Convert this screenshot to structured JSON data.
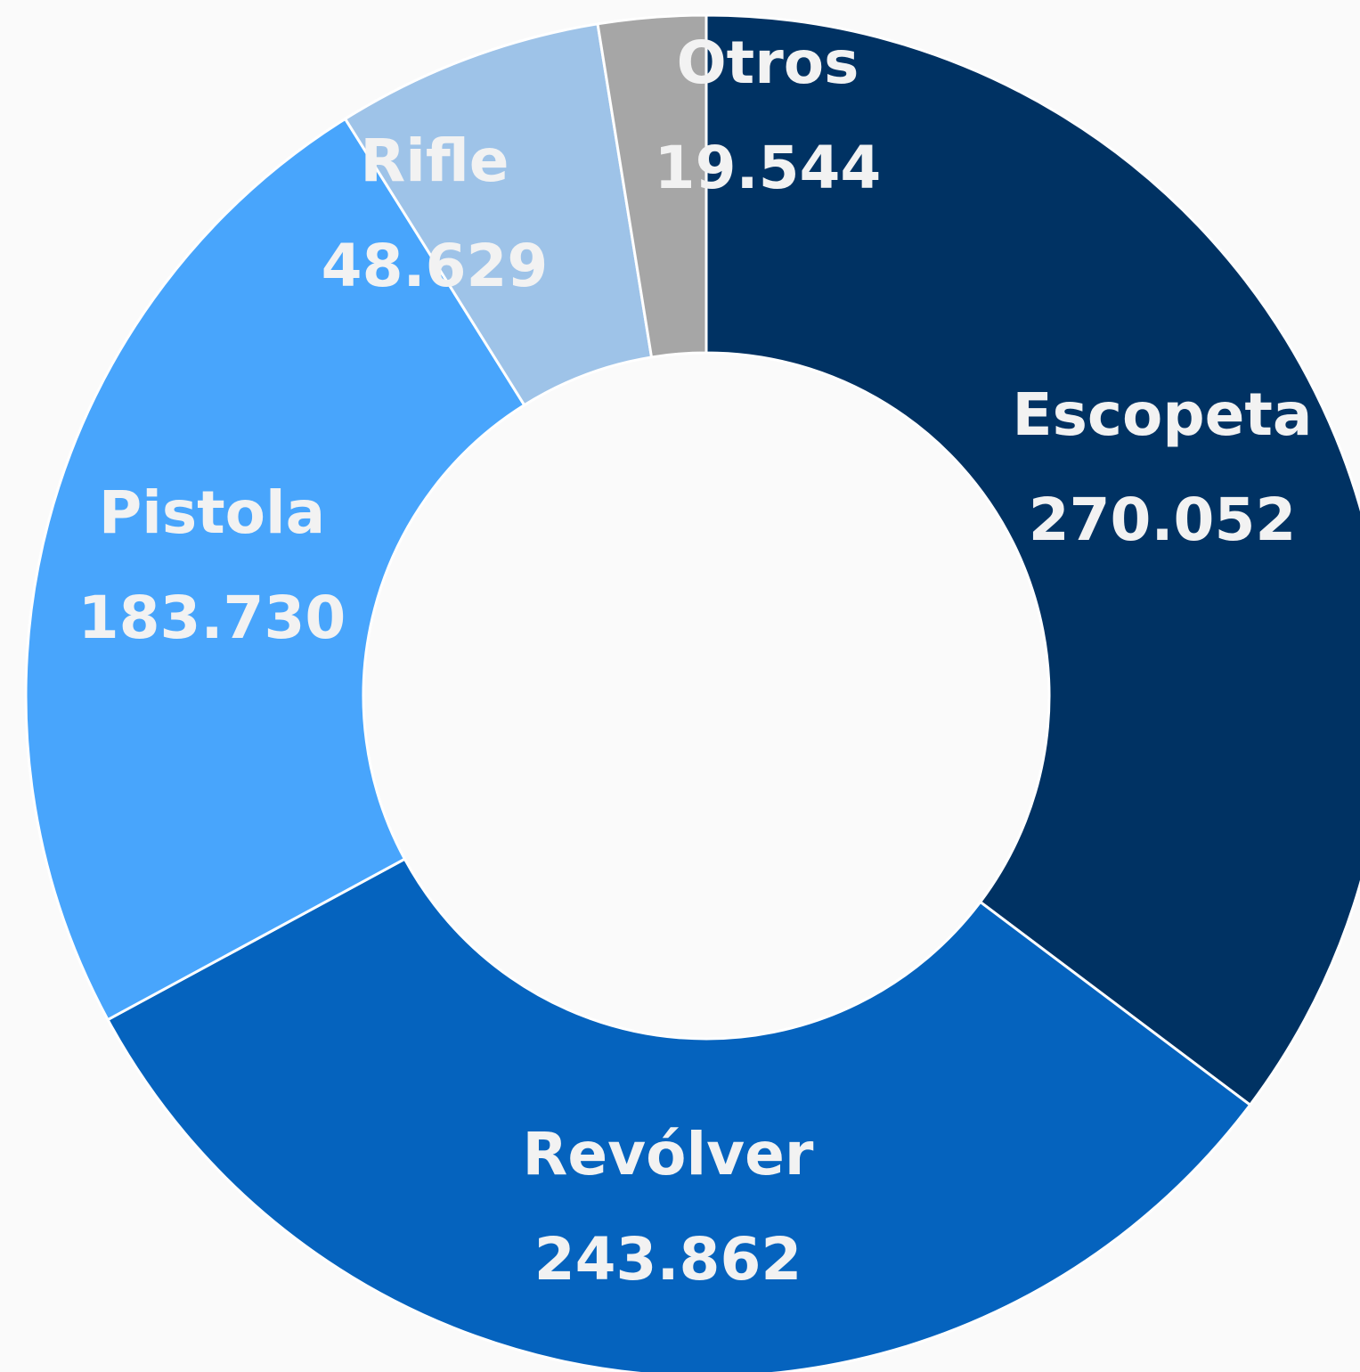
{
  "chart_data": {
    "type": "pie",
    "donut": true,
    "categories": [
      "Escopeta",
      "Revólver",
      "Pistola",
      "Rifle",
      "Otros"
    ],
    "values": [
      270052,
      243862,
      183730,
      48629,
      19544
    ],
    "value_labels": [
      "270.052",
      "243.862",
      "183.730",
      "48.629",
      "19.544"
    ],
    "colors": [
      "#003263",
      "#0563be",
      "#48a5fc",
      "#9ec3e8",
      "#a6a6a6"
    ],
    "label_color": "#f2f2f2",
    "start_angle_deg": 0,
    "direction": "clockwise",
    "title": "",
    "legend": "none"
  }
}
